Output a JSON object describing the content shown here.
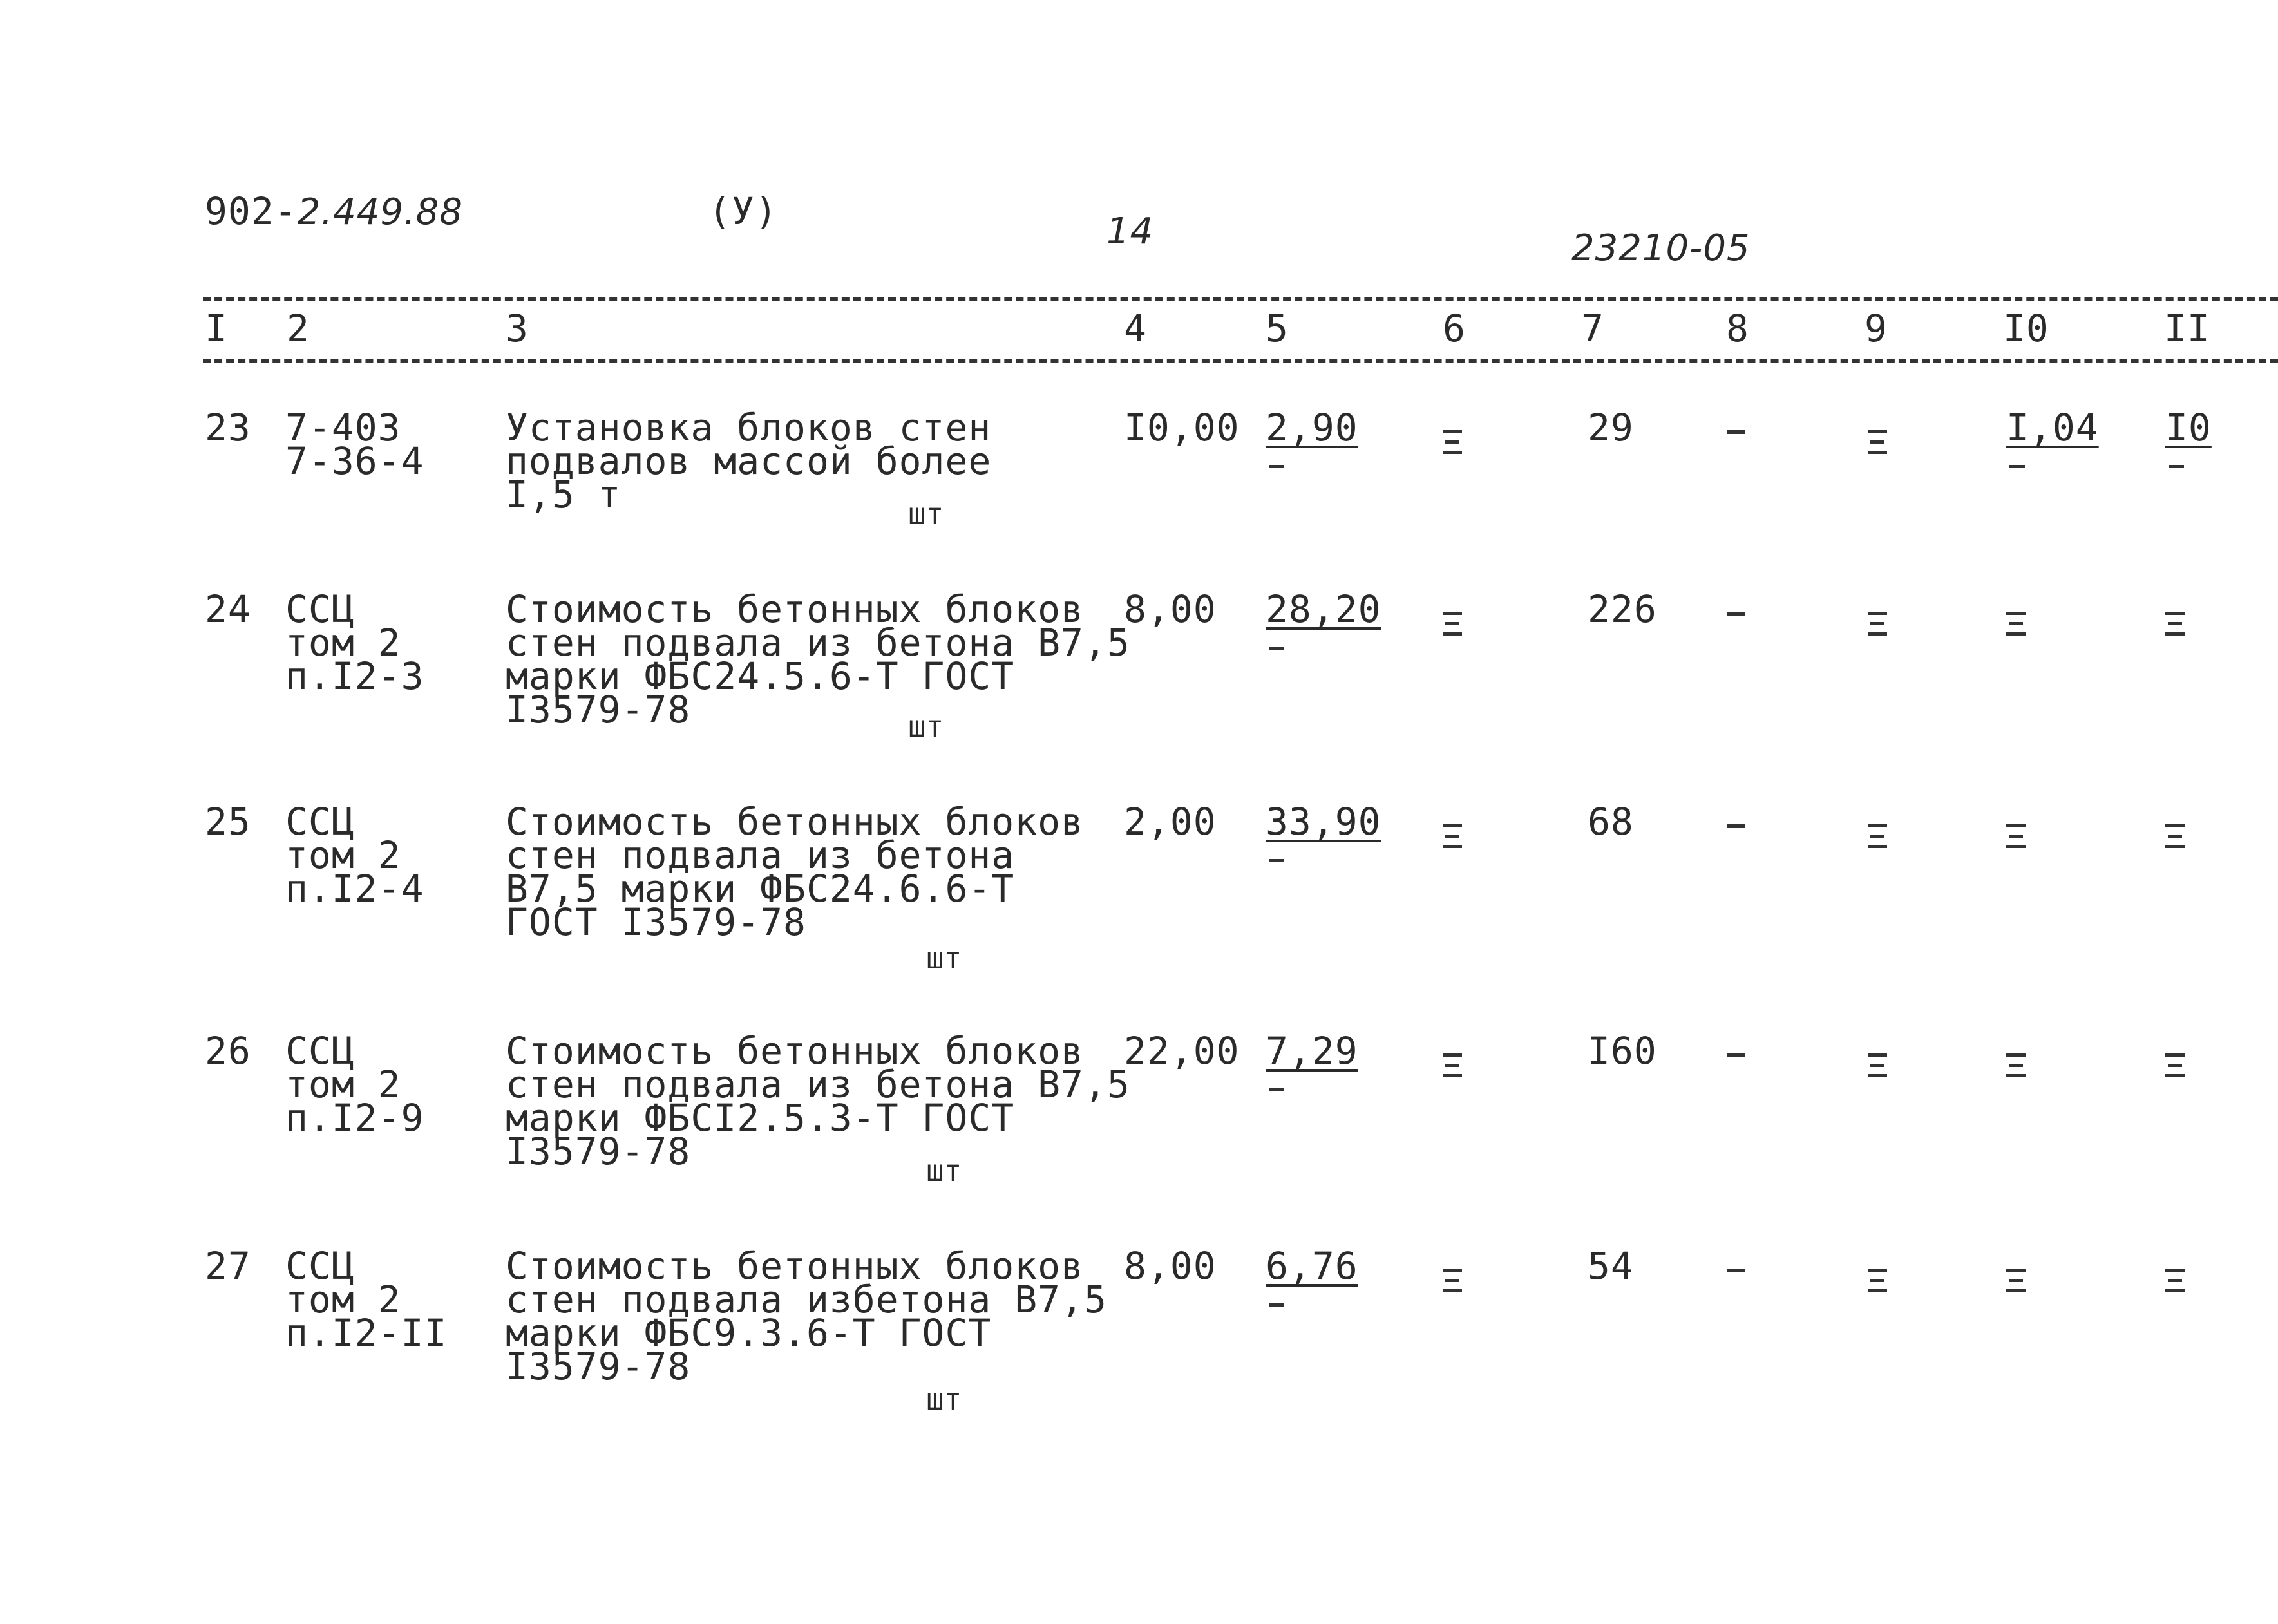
{
  "header": {
    "doc_prefix": "902-",
    "doc_hand": "2.449.88",
    "mark": "(У)",
    "page": "14",
    "ref": "23210-05"
  },
  "columns": [
    "I",
    "2",
    "3",
    "4",
    "5",
    "6",
    "7",
    "8",
    "9",
    "I0",
    "II"
  ],
  "rows": [
    {
      "num": "23",
      "code": [
        "7-403",
        "7-36-4"
      ],
      "desc": [
        "Установка блоков стен",
        "подвалов массой более",
        "I,5 т"
      ],
      "unit": "шт",
      "qty": "I0,00",
      "price": "2,90",
      "total": "29",
      "dash": "-",
      "c10": "I,04",
      "c11": "I0"
    },
    {
      "num": "24",
      "code": [
        "ССЦ",
        "том 2",
        "п.I2-3"
      ],
      "desc": [
        "Стоимость бетонных блоков",
        "стен подвала из бетона В7,5",
        "марки ФБС24.5.6-Т ГОСТ",
        "I3579-78"
      ],
      "unit": "шт",
      "qty": "8,00",
      "price": "28,20",
      "total": "226",
      "dash": "-"
    },
    {
      "num": "25",
      "code": [
        "ССЦ",
        "том 2",
        "п.I2-4"
      ],
      "desc": [
        "Стоимость бетонных блоков",
        "стен подвала из бетона",
        "В7,5 марки ФБС24.6.6-Т",
        "ГОСТ I3579-78"
      ],
      "unit": "шт",
      "qty": "2,00",
      "price": "33,90",
      "total": "68",
      "dash": "-"
    },
    {
      "num": "26",
      "code": [
        "ССЦ",
        "том 2",
        "п.I2-9"
      ],
      "desc": [
        "Стоимость бетонных блоков",
        "стен подвала из бетона В7,5",
        "марки ФБСI2.5.3-Т ГОСТ",
        "I3579-78"
      ],
      "unit": "шт",
      "qty": "22,00",
      "price": "7,29",
      "total": "I60",
      "dash": "-"
    },
    {
      "num": "27",
      "code": [
        "ССЦ",
        "том 2",
        "п.I2-II"
      ],
      "desc": [
        "Стоимость бетонных блоков",
        "стен подвала избетона В7,5",
        "марки ФБС9.3.6-Т ГОСТ",
        "I3579-78"
      ],
      "unit": "шт",
      "qty": "8,00",
      "price": "6,76",
      "total": "54",
      "dash": "-"
    }
  ]
}
